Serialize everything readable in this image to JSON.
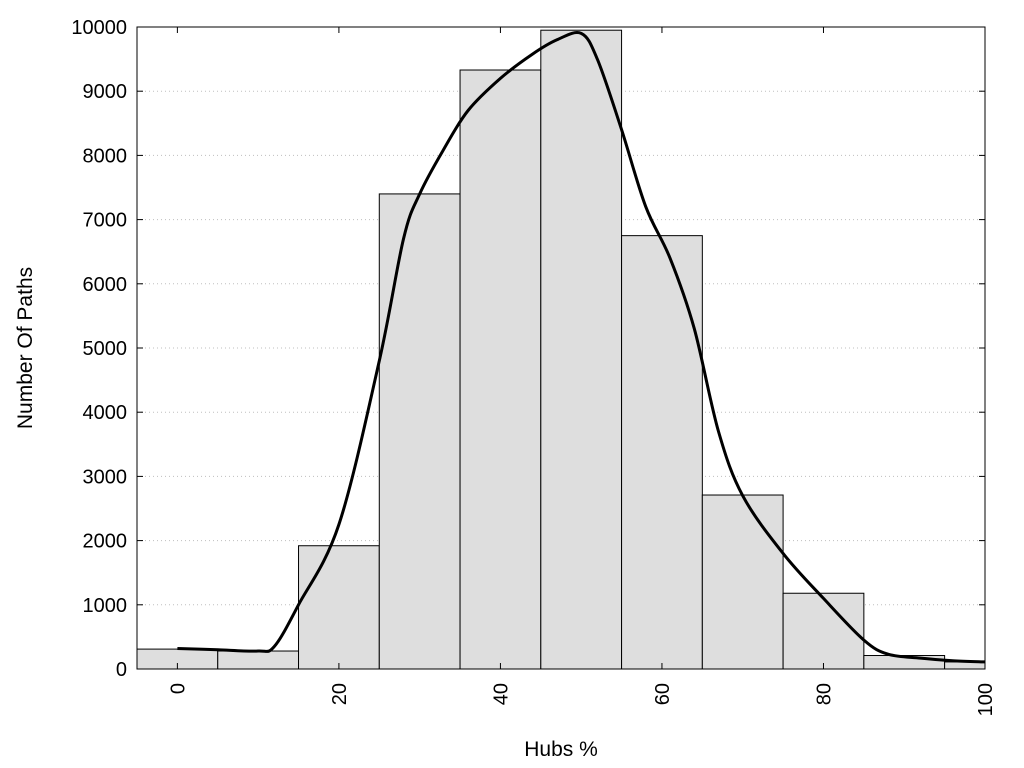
{
  "chart_data": {
    "type": "bar",
    "title": "",
    "xlabel": "Hubs %",
    "ylabel": "Number Of Paths",
    "xlim": [
      -5,
      100
    ],
    "ylim": [
      0,
      10000
    ],
    "x_ticks": [
      "0",
      "20",
      "40",
      "60",
      "80",
      "100"
    ],
    "y_ticks": [
      "0",
      "1000",
      "2000",
      "3000",
      "4000",
      "5000",
      "6000",
      "7000",
      "8000",
      "9000",
      "10000"
    ],
    "grid": "horizontal dotted",
    "bin_width": 10,
    "bins": [
      {
        "x": 0,
        "value": 310
      },
      {
        "x": 10,
        "value": 280
      },
      {
        "x": 20,
        "value": 1920
      },
      {
        "x": 30,
        "value": 7400
      },
      {
        "x": 40,
        "value": 9330
      },
      {
        "x": 50,
        "value": 9950
      },
      {
        "x": 60,
        "value": 6750
      },
      {
        "x": 70,
        "value": 2710
      },
      {
        "x": 80,
        "value": 1180
      },
      {
        "x": 90,
        "value": 210
      },
      {
        "x": 100,
        "value": 110
      }
    ],
    "curve": {
      "type": "line",
      "x": [
        0,
        5,
        10,
        12,
        15,
        20,
        25,
        28,
        30,
        33,
        36,
        40,
        44,
        47,
        50,
        52,
        55,
        58,
        61,
        64,
        67,
        70,
        75,
        80,
        85,
        88,
        92,
        96,
        100
      ],
      "y": [
        320,
        300,
        280,
        350,
        1000,
        2250,
        4800,
        6700,
        7400,
        8100,
        8700,
        9200,
        9580,
        9800,
        9900,
        9500,
        8400,
        7200,
        6400,
        5300,
        3700,
        2700,
        1800,
        1100,
        450,
        230,
        170,
        130,
        110
      ]
    },
    "colors": {
      "bar_fill": "#dedede",
      "bar_stroke": "#000000",
      "curve": "#000000",
      "grid": "#bfbfbf"
    }
  }
}
